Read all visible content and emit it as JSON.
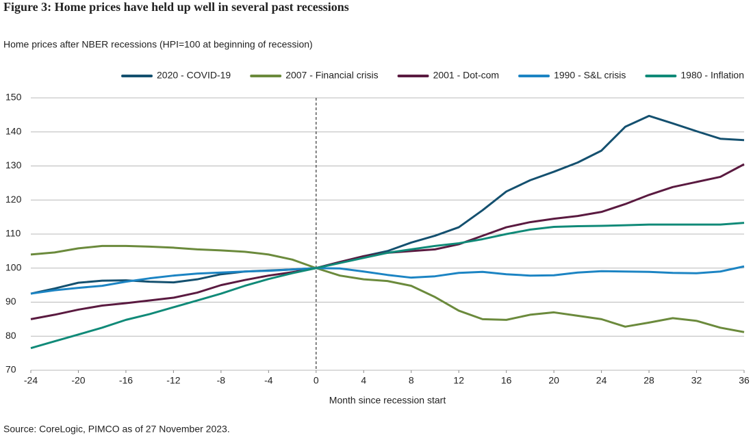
{
  "chart_data": {
    "type": "line",
    "title": "Figure 3: Home prices have held up well in several past recessions",
    "subtitle": "Home prices after NBER recessions (HPI=100 at beginning of recession)",
    "x_label": "Month since recession start",
    "source": "Source: CoreLogic, PIMCO as of 27 November 2023.",
    "x": [
      -24,
      -22,
      -20,
      -18,
      -16,
      -14,
      -12,
      -10,
      -8,
      -6,
      -4,
      -2,
      0,
      2,
      4,
      6,
      8,
      10,
      12,
      14,
      16,
      18,
      20,
      22,
      24,
      26,
      28,
      30,
      32,
      34,
      36
    ],
    "series": [
      {
        "name": "2020 - COVID-19",
        "color": "#14506f",
        "values": [
          92.5,
          94,
          95.7,
          96.3,
          96.4,
          96,
          95.8,
          96.7,
          98.2,
          99,
          99.3,
          99.6,
          100,
          101.8,
          103.5,
          105,
          107.5,
          109.5,
          112,
          117,
          122.5,
          125.8,
          128.3,
          131,
          134.5,
          141.5,
          144.7,
          142.5,
          140.2,
          138,
          137.6
        ]
      },
      {
        "name": "2007 - Financial crisis",
        "color": "#6b8a3c",
        "values": [
          104,
          104.6,
          105.8,
          106.5,
          106.5,
          106.3,
          106,
          105.5,
          105.2,
          104.8,
          104,
          102.5,
          100,
          97.8,
          96.7,
          96.2,
          94.8,
          91.5,
          87.5,
          85,
          84.8,
          86.3,
          87,
          86,
          85,
          82.8,
          84,
          85.3,
          84.5,
          82.5,
          81.2
        ]
      },
      {
        "name": "2001 - Dot-com",
        "color": "#5a1a40",
        "values": [
          85,
          86.3,
          87.8,
          89,
          89.7,
          90.5,
          91.3,
          92.8,
          95,
          96.5,
          97.8,
          98.8,
          100,
          101.8,
          103.5,
          104.5,
          105,
          105.5,
          107,
          109.5,
          112,
          113.5,
          114.5,
          115.3,
          116.5,
          118.8,
          121.5,
          123.8,
          125.3,
          126.8,
          130.5
        ]
      },
      {
        "name": "1990 - S&L crisis",
        "color": "#1c84c3",
        "values": [
          92.5,
          93.5,
          94.2,
          94.8,
          96,
          97,
          97.8,
          98.4,
          98.7,
          99,
          99.2,
          99.6,
          100,
          99.9,
          99,
          98,
          97.2,
          97.6,
          98.6,
          98.9,
          98.2,
          97.8,
          97.9,
          98.7,
          99.1,
          99,
          98.9,
          98.6,
          98.5,
          99,
          100.5
        ]
      },
      {
        "name": "1980 - Inflation",
        "color": "#108a78",
        "values": [
          76.5,
          78.5,
          80.5,
          82.5,
          84.8,
          86.5,
          88.5,
          90.5,
          92.5,
          94.8,
          96.8,
          98.5,
          100,
          101.5,
          103,
          104.5,
          105.5,
          106.5,
          107.3,
          108.5,
          110,
          111.3,
          112.1,
          112.3,
          112.4,
          112.6,
          112.8,
          112.8,
          112.8,
          112.8,
          113.3
        ]
      }
    ],
    "xlim": [
      -24,
      36
    ],
    "xticks": [
      -24,
      -20,
      -16,
      -12,
      -8,
      -4,
      0,
      4,
      8,
      12,
      16,
      20,
      24,
      28,
      32,
      36
    ],
    "ylim": [
      70,
      150
    ],
    "yticks": [
      70,
      80,
      90,
      100,
      110,
      120,
      130,
      140,
      150
    ],
    "grid": true,
    "vline": 0,
    "legend": "top"
  }
}
